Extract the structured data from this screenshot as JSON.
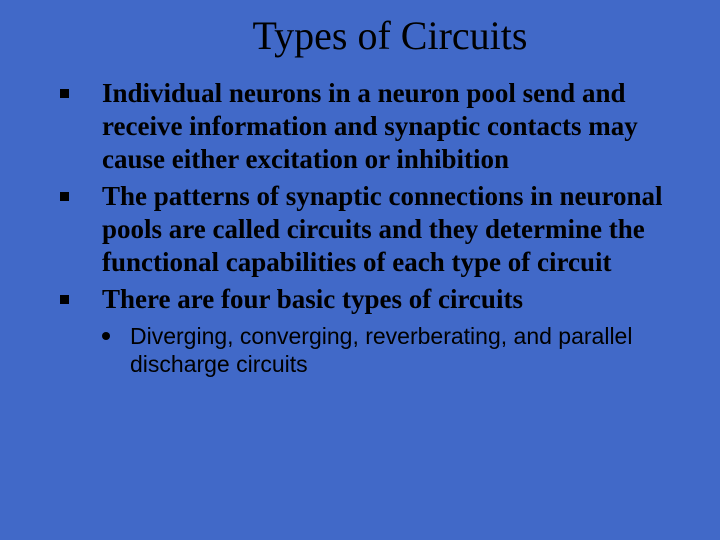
{
  "background_color": "#4169c8",
  "text_color": "#000000",
  "title_font": "Times New Roman",
  "body_font": "Times New Roman",
  "sub_font": "Arial",
  "title": "Types of Circuits",
  "title_fontsize": 40,
  "bullet_fontsize": 27,
  "sub_fontsize": 23,
  "bullet_marker": {
    "shape": "square",
    "size": 9,
    "color": "#000000"
  },
  "sub_marker": {
    "shape": "circle",
    "size": 8,
    "color": "#000000"
  },
  "bullets": [
    {
      "text": "Individual neurons in a neuron pool send and receive information and synaptic contacts may cause either excitation or inhibition"
    },
    {
      "text": "The patterns of synaptic connections in neuronal pools are called circuits and they determine the functional capabilities of each type of circuit"
    },
    {
      "text": "There are four basic types of circuits"
    }
  ],
  "sub_bullets": [
    {
      "text": "Diverging, converging, reverberating, and parallel discharge circuits"
    }
  ]
}
